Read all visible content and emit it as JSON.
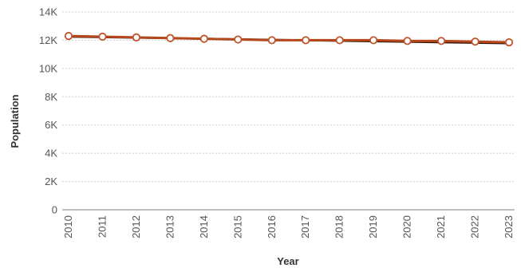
{
  "chart_data": {
    "type": "line",
    "title": "",
    "xlabel": "Year",
    "ylabel": "Population",
    "x": [
      "2010",
      "2011",
      "2012",
      "2013",
      "2014",
      "2015",
      "2016",
      "2017",
      "2018",
      "2019",
      "2020",
      "2021",
      "2022",
      "2023"
    ],
    "series": [
      {
        "name": "",
        "values": [
          12300,
          12250,
          12200,
          12150,
          12100,
          12050,
          12000,
          12000,
          12000,
          12000,
          11950,
          11950,
          11900,
          11850
        ]
      }
    ],
    "trend_line": {
      "start": 12250,
      "end": 11780
    },
    "yticks": [
      0,
      2000,
      4000,
      6000,
      8000,
      10000,
      12000,
      14000
    ],
    "ytick_labels": [
      "0",
      "2K",
      "4K",
      "6K",
      "8K",
      "10K",
      "12K",
      "14K"
    ],
    "ylim": [
      0,
      14000
    ],
    "grid": "horizontal-dotted",
    "colors": {
      "series_line": "#b5471b",
      "trend_line": "#2d1408",
      "marker_fill": "#ffffff",
      "marker_stroke": "#c0532a",
      "grid": "#bbbbbb",
      "axis": "#999999"
    }
  }
}
